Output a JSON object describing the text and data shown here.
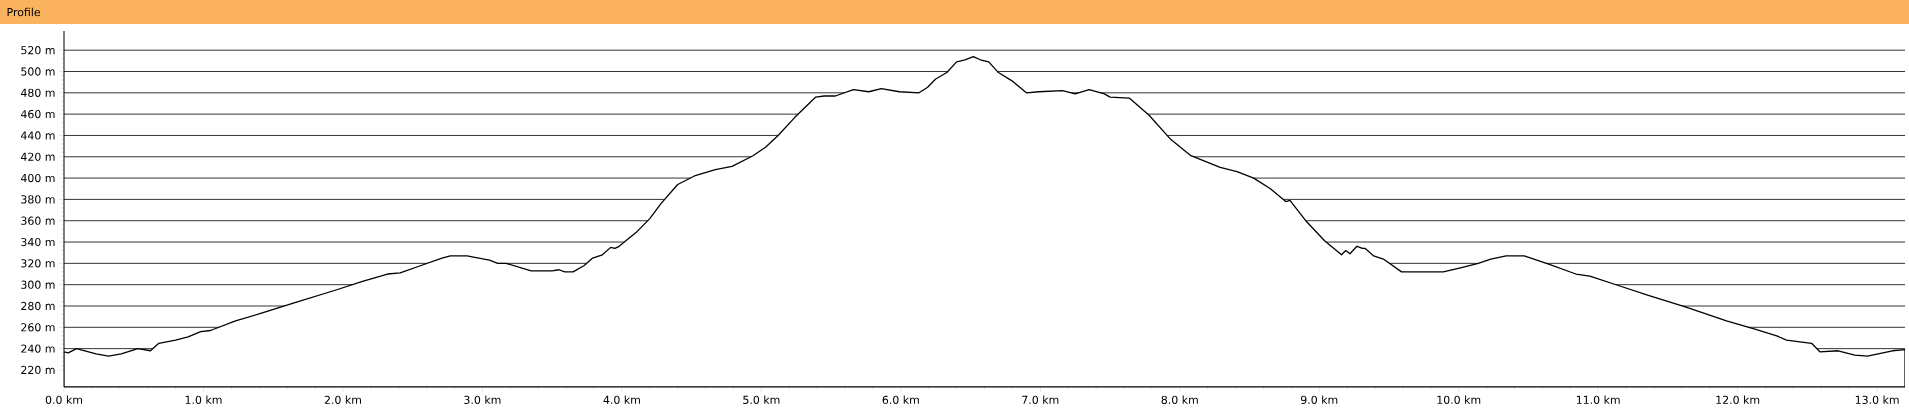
{
  "chart_data": {
    "type": "area",
    "title": "Profile",
    "color": "#ffffff",
    "x": [
      0.0,
      0.03,
      0.09,
      0.23,
      0.32,
      0.41,
      0.53,
      0.62,
      0.68,
      0.8,
      0.89,
      0.98,
      1.05,
      1.23,
      1.41,
      1.65,
      1.95,
      2.14,
      2.32,
      2.41,
      2.56,
      2.71,
      2.77,
      2.89,
      3.05,
      3.11,
      3.17,
      3.35,
      3.5,
      3.55,
      3.59,
      3.65,
      3.73,
      3.79,
      3.86,
      3.92,
      3.95,
      3.98,
      4.11,
      4.2,
      4.28,
      4.4,
      4.52,
      4.67,
      4.79,
      4.94,
      5.03,
      5.12,
      5.24,
      5.39,
      5.45,
      5.53,
      5.66,
      5.77,
      5.86,
      5.99,
      6.13,
      6.19,
      6.25,
      6.33,
      6.4,
      6.46,
      6.52,
      6.57,
      6.63,
      6.7,
      6.8,
      6.9,
      6.99,
      7.16,
      7.25,
      7.35,
      7.46,
      7.5,
      7.64,
      7.78,
      7.93,
      8.08,
      8.29,
      8.41,
      8.53,
      8.65,
      8.76,
      8.79,
      8.91,
      9.04,
      9.16,
      9.19,
      9.22,
      9.27,
      9.31,
      9.33,
      9.39,
      9.46,
      9.59,
      9.76,
      9.89,
      10.02,
      10.14,
      10.23,
      10.34,
      10.47,
      10.65,
      10.84,
      10.94,
      11.15,
      11.36,
      11.63,
      11.92,
      12.13,
      12.28,
      12.35,
      12.53,
      12.59,
      12.72,
      12.84,
      12.93,
      13.11,
      13.2
    ],
    "values": [
      237,
      236,
      240,
      235,
      233,
      235,
      240,
      238,
      245,
      248,
      251,
      256,
      257,
      266,
      273,
      283,
      295,
      303,
      310,
      311,
      318,
      325,
      327,
      327,
      323,
      320,
      320,
      313,
      313,
      314,
      312,
      312,
      318,
      325,
      328,
      335,
      334,
      336,
      350,
      362,
      376,
      394,
      402,
      408,
      411,
      421,
      429,
      440,
      457,
      476,
      477,
      477,
      483,
      481,
      484,
      481,
      480,
      485,
      493,
      499,
      509,
      511,
      514,
      511,
      509,
      499,
      491,
      480,
      481,
      482,
      479,
      483,
      479,
      476,
      475,
      459,
      437,
      421,
      410,
      406,
      400,
      390,
      378,
      379,
      359,
      341,
      328,
      332,
      329,
      336,
      334,
      334,
      327,
      324,
      312,
      312,
      312,
      316,
      320,
      324,
      327,
      327,
      319,
      310,
      308,
      299,
      290,
      279,
      266,
      258,
      252,
      248,
      245,
      237,
      238,
      234,
      233,
      238,
      239
    ],
    "xlim": [
      0,
      13.2
    ],
    "ylim": [
      204,
      538
    ],
    "xticks": [
      {
        "value": 0,
        "label": "0.0 km"
      },
      {
        "value": 1,
        "label": "1.0 km"
      },
      {
        "value": 2,
        "label": "2.0 km"
      },
      {
        "value": 3,
        "label": "3.0 km"
      },
      {
        "value": 4,
        "label": "4.0 km"
      },
      {
        "value": 5,
        "label": "5.0 km"
      },
      {
        "value": 6,
        "label": "6.0 km"
      },
      {
        "value": 7,
        "label": "7.0 km"
      },
      {
        "value": 8,
        "label": "8.0 km"
      },
      {
        "value": 9,
        "label": "9.0 km"
      },
      {
        "value": 10,
        "label": "10.0 km"
      },
      {
        "value": 11,
        "label": "11.0 km"
      },
      {
        "value": 12,
        "label": "12.0 km"
      },
      {
        "value": 13,
        "label": "13.0 km"
      }
    ],
    "yticks": [
      {
        "value": 220,
        "label": "220 m"
      },
      {
        "value": 240,
        "label": "240 m"
      },
      {
        "value": 260,
        "label": "260 m"
      },
      {
        "value": 280,
        "label": "280 m"
      },
      {
        "value": 300,
        "label": "300 m"
      },
      {
        "value": 320,
        "label": "320 m"
      },
      {
        "value": 340,
        "label": "340 m"
      },
      {
        "value": 360,
        "label": "360 m"
      },
      {
        "value": 380,
        "label": "380 m"
      },
      {
        "value": 400,
        "label": "400 m"
      },
      {
        "value": 420,
        "label": "420 m"
      },
      {
        "value": 440,
        "label": "440 m"
      },
      {
        "value": 460,
        "label": "460 m"
      },
      {
        "value": 480,
        "label": "480 m"
      },
      {
        "value": 500,
        "label": "500 m"
      },
      {
        "value": 520,
        "label": "520 m"
      }
    ],
    "grid": "y",
    "marker": "none"
  }
}
